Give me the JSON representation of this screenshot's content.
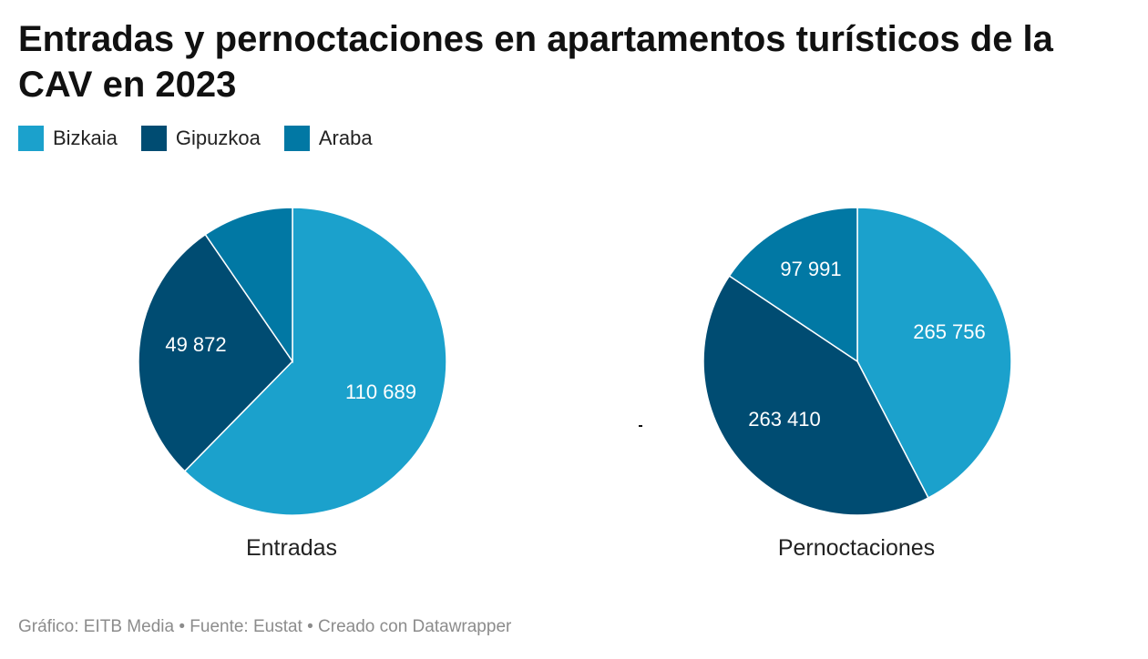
{
  "title": "Entradas y pernoctaciones en apartamentos turísticos de la CAV en 2023",
  "footer": "Gráfico: EITB Media • Fuente: Eustat • Creado con Datawrapper",
  "colors": {
    "Bizkaia": "#1ba1cc",
    "Gipuzkoa": "#004c72",
    "Araba": "#0178a4"
  },
  "legend": [
    {
      "label": "Bizkaia",
      "color": "#1ba1cc"
    },
    {
      "label": "Gipuzkoa",
      "color": "#004c72"
    },
    {
      "label": "Araba",
      "color": "#0178a4"
    }
  ],
  "chart_data": [
    {
      "type": "pie",
      "title": "Entradas",
      "categories": [
        "Bizkaia",
        "Gipuzkoa",
        "Araba"
      ],
      "values": [
        110689,
        49872,
        17000
      ],
      "labels": [
        "110 689",
        "49 872",
        ""
      ]
    },
    {
      "type": "pie",
      "title": "Pernoctaciones",
      "categories": [
        "Bizkaia",
        "Gipuzkoa",
        "Araba"
      ],
      "values": [
        265756,
        263410,
        97991
      ],
      "labels": [
        "265 756",
        "263 410",
        "97 991"
      ]
    }
  ]
}
